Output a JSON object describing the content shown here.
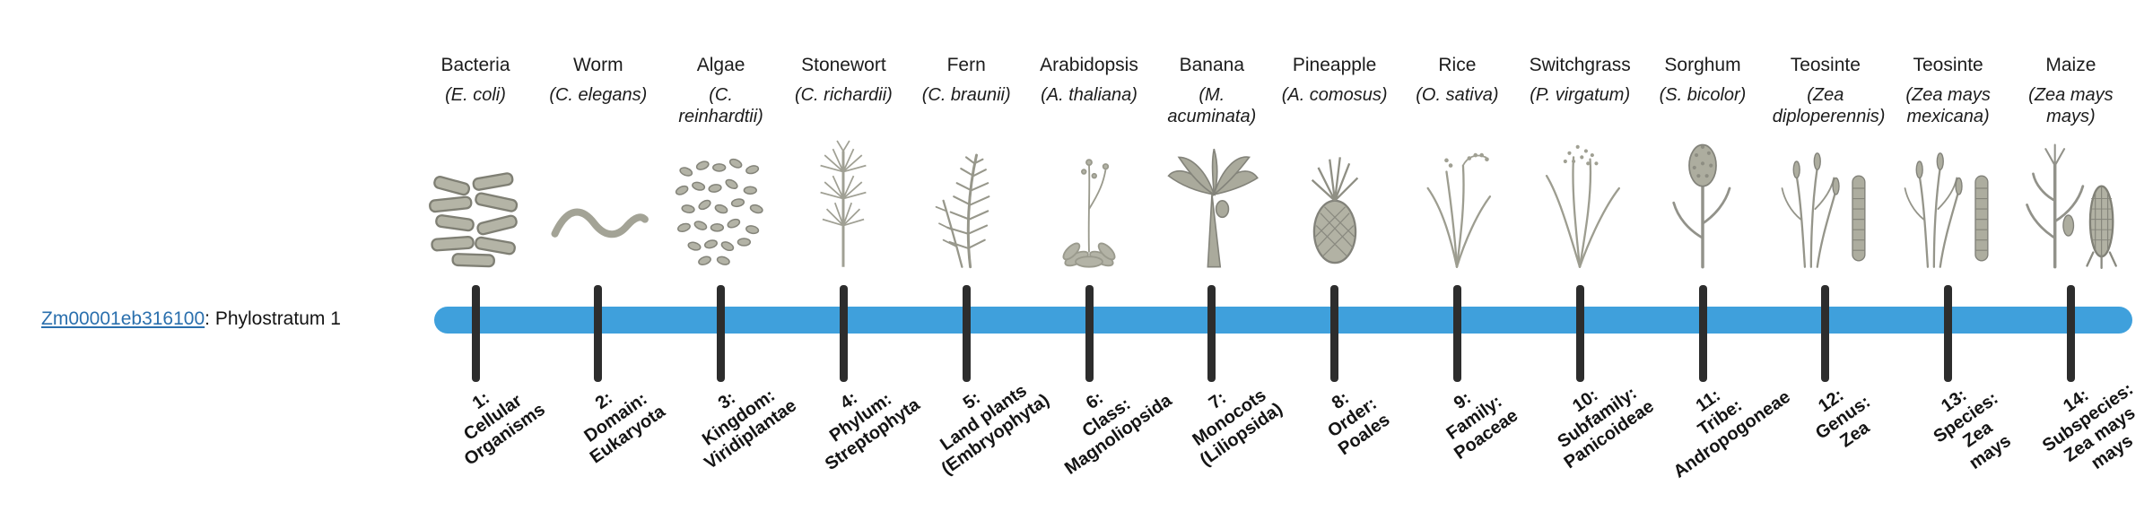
{
  "gene_label": {
    "id": "Zm00001eb316100",
    "text": ": Phylostratum 1"
  },
  "timeline": {
    "bar_color": "#3FA0DC",
    "tick_color": "#2d2d2d",
    "link_color": "#2a6fad"
  },
  "organisms": [
    {
      "name": "Bacteria",
      "sci": "(E. coli)",
      "icon": "bacteria-icon"
    },
    {
      "name": "Worm",
      "sci": "(C. elegans)",
      "icon": "worm-icon"
    },
    {
      "name": "Algae",
      "sci": "(C. reinhardtii)",
      "icon": "algae-icon"
    },
    {
      "name": "Stonewort",
      "sci": "(C. richardii)",
      "icon": "stonewort-icon"
    },
    {
      "name": "Fern",
      "sci": "(C. braunii)",
      "icon": "fern-icon"
    },
    {
      "name": "Arabidopsis",
      "sci": "(A. thaliana)",
      "icon": "arabidopsis-icon"
    },
    {
      "name": "Banana",
      "sci": "(M. acuminata)",
      "icon": "banana-icon"
    },
    {
      "name": "Pineapple",
      "sci": "(A. comosus)",
      "icon": "pineapple-icon"
    },
    {
      "name": "Rice",
      "sci": "(O. sativa)",
      "icon": "rice-icon"
    },
    {
      "name": "Switchgrass",
      "sci": "(P. virgatum)",
      "icon": "switchgrass-icon"
    },
    {
      "name": "Sorghum",
      "sci": "(S. bicolor)",
      "icon": "sorghum-icon"
    },
    {
      "name": "Teosinte",
      "sci": "(Zea diploperennis)",
      "icon": "teosinte-icon"
    },
    {
      "name": "Teosinte",
      "sci": "(Zea mays mexicana)",
      "icon": "teosinte-icon"
    },
    {
      "name": "Maize",
      "sci": "(Zea mays mays)",
      "icon": "maize-icon"
    }
  ],
  "phylostrata": [
    {
      "lines": [
        "1:",
        "Cellular",
        "Organisms"
      ]
    },
    {
      "lines": [
        "2:",
        "Domain:",
        "Eukaryota"
      ]
    },
    {
      "lines": [
        "3:",
        "Kingdom:",
        "Viridiplantae"
      ]
    },
    {
      "lines": [
        "4:",
        "Phylum:",
        "Streptophyta"
      ]
    },
    {
      "lines": [
        "5:",
        "Land plants",
        "(Embryophyta)"
      ]
    },
    {
      "lines": [
        "6:",
        "Class:",
        "Magnoliopsida"
      ]
    },
    {
      "lines": [
        "7:",
        "Monocots",
        "(Liliopsida)"
      ]
    },
    {
      "lines": [
        "8:",
        "Order:",
        "Poales"
      ]
    },
    {
      "lines": [
        "9:",
        "Family:",
        "Poaceae"
      ]
    },
    {
      "lines": [
        "10:",
        "Subfamily:",
        "Panicoideae"
      ]
    },
    {
      "lines": [
        "11:",
        "Tribe:",
        "Andropogoneae"
      ]
    },
    {
      "lines": [
        "12:",
        "Genus:",
        "Zea"
      ]
    },
    {
      "lines": [
        "13:",
        "Species:",
        "Zea",
        "mays"
      ]
    },
    {
      "lines": [
        "14:",
        "Subspecies:",
        "Zea mays",
        "mays"
      ]
    }
  ]
}
